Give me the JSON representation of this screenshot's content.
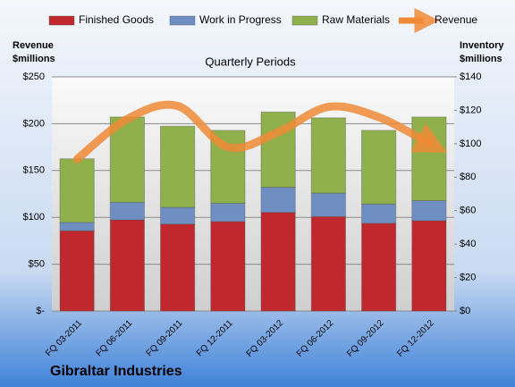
{
  "chart_data": {
    "type": "bar",
    "stacked": true,
    "subtitle": "Quarterly Periods",
    "y_label": [
      "Revenue",
      "$millions"
    ],
    "y2_label": [
      "Inventory",
      "$millions"
    ],
    "footer": "Gibraltar Industries",
    "categories": [
      "FQ 03-2011",
      "FQ 06-2011",
      "FQ 09-2011",
      "FQ 12-2011",
      "FQ 03-2012",
      "FQ 06-2012",
      "FQ 09-2012",
      "FQ 12-2012"
    ],
    "series": [
      {
        "name": "Finished Goods",
        "color": "#c0282d",
        "axis": "y2",
        "type": "bar",
        "values": [
          48,
          54.5,
          52,
          53.5,
          59,
          56.5,
          52.5,
          54
        ]
      },
      {
        "name": "Work in Progress",
        "color": "#6f8fc2",
        "axis": "y2",
        "type": "bar",
        "values": [
          5,
          10.5,
          10,
          11,
          15,
          14,
          11.5,
          12
        ]
      },
      {
        "name": "Raw Materials",
        "color": "#8fb04b",
        "axis": "y2",
        "type": "bar",
        "values": [
          38,
          51,
          48.5,
          43.5,
          45,
          45,
          44,
          50
        ]
      },
      {
        "name": "Revenue",
        "color": "#f08a36",
        "axis": "y",
        "type": "line",
        "values": [
          162,
          205,
          219,
          175,
          191,
          218,
          207,
          179
        ]
      }
    ],
    "ylim": [
      0,
      250
    ],
    "yticks": [
      {
        "value": 0,
        "label": "$-"
      },
      {
        "value": 50,
        "label": "$50"
      },
      {
        "value": 100,
        "label": "$100"
      },
      {
        "value": 150,
        "label": "$150"
      },
      {
        "value": 200,
        "label": "$200"
      },
      {
        "value": 250,
        "label": "$250"
      }
    ],
    "y2lim": [
      0,
      140
    ],
    "y2ticks": [
      {
        "value": 0,
        "label": "$0"
      },
      {
        "value": 20,
        "label": "$20"
      },
      {
        "value": 40,
        "label": "$40"
      },
      {
        "value": 60,
        "label": "$60"
      },
      {
        "value": 80,
        "label": "$80"
      },
      {
        "value": 100,
        "label": "$100"
      },
      {
        "value": 120,
        "label": "$120"
      },
      {
        "value": 140,
        "label": "$140"
      }
    ],
    "grid": true
  }
}
